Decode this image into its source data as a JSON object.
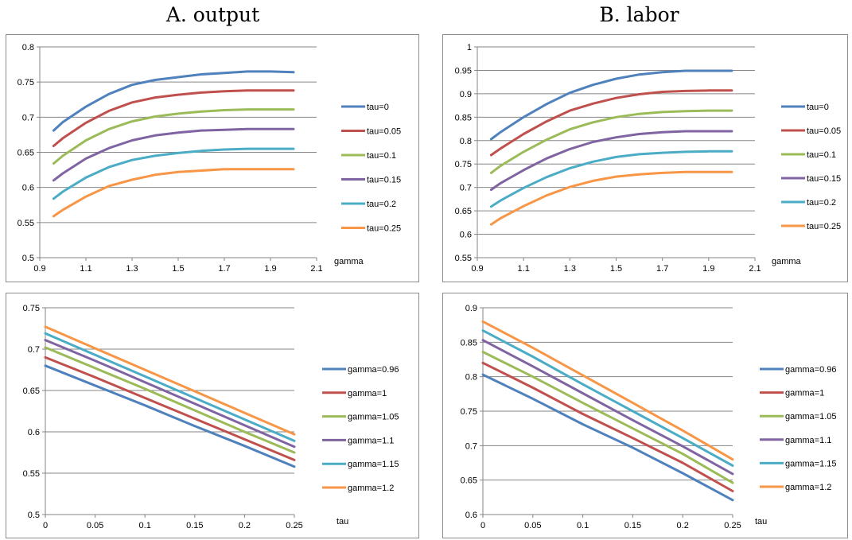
{
  "titles": {
    "left": "A. output",
    "right": "B. labor"
  },
  "chart_data": [
    {
      "id": "output_vs_gamma",
      "type": "line",
      "xlabel": "gamma",
      "ylabel": "",
      "xlim": [
        0.9,
        2.1
      ],
      "ylim": [
        0.5,
        0.8
      ],
      "xticks": [
        0.9,
        1.1,
        1.3,
        1.5,
        1.7,
        1.9,
        2.1
      ],
      "xtick_labels": [
        "0.9",
        "1.1",
        "1.3",
        "1.5",
        "1.7",
        "1.9",
        "2.1"
      ],
      "yticks": [
        0.5,
        0.55,
        0.6,
        0.65,
        0.7,
        0.75,
        0.8
      ],
      "ytick_labels": [
        "0.5",
        "0.55",
        "0.6",
        "0.65",
        "0.7",
        "0.75",
        "0.8"
      ],
      "grid": "horizontal",
      "legend": "right",
      "x": [
        0.96,
        1.0,
        1.1,
        1.2,
        1.3,
        1.4,
        1.5,
        1.6,
        1.7,
        1.8,
        1.9,
        2.0
      ],
      "series": [
        {
          "name": "tau=0",
          "color": "#4f81bd",
          "values": [
            0.681,
            0.693,
            0.715,
            0.733,
            0.746,
            0.753,
            0.757,
            0.761,
            0.763,
            0.765,
            0.765,
            0.764
          ]
        },
        {
          "name": "tau=0.05",
          "color": "#c0504d",
          "values": [
            0.659,
            0.67,
            0.692,
            0.709,
            0.721,
            0.728,
            0.732,
            0.735,
            0.737,
            0.738,
            0.738,
            0.738
          ]
        },
        {
          "name": "tau=0.1",
          "color": "#9bbb59",
          "values": [
            0.634,
            0.645,
            0.667,
            0.683,
            0.694,
            0.701,
            0.705,
            0.708,
            0.71,
            0.711,
            0.711,
            0.711
          ]
        },
        {
          "name": "tau=0.15",
          "color": "#8064a2",
          "values": [
            0.61,
            0.62,
            0.641,
            0.656,
            0.667,
            0.674,
            0.678,
            0.681,
            0.682,
            0.683,
            0.683,
            0.683
          ]
        },
        {
          "name": "tau=0.2",
          "color": "#4bacc6",
          "values": [
            0.584,
            0.594,
            0.614,
            0.629,
            0.639,
            0.645,
            0.649,
            0.652,
            0.654,
            0.655,
            0.655,
            0.655
          ]
        },
        {
          "name": "tau=0.25",
          "color": "#f79646",
          "values": [
            0.559,
            0.568,
            0.587,
            0.602,
            0.611,
            0.618,
            0.622,
            0.624,
            0.626,
            0.626,
            0.626,
            0.626
          ]
        }
      ]
    },
    {
      "id": "labor_vs_gamma",
      "type": "line",
      "xlabel": "gamma",
      "ylabel": "",
      "xlim": [
        0.9,
        2.1
      ],
      "ylim": [
        0.55,
        1.0
      ],
      "xticks": [
        0.9,
        1.1,
        1.3,
        1.5,
        1.7,
        1.9,
        2.1
      ],
      "xtick_labels": [
        "0.9",
        "1.1",
        "1.3",
        "1.5",
        "1.7",
        "1.9",
        "2.1"
      ],
      "yticks": [
        0.55,
        0.6,
        0.65,
        0.7,
        0.75,
        0.8,
        0.85,
        0.9,
        0.95,
        1.0
      ],
      "ytick_labels": [
        "0.55",
        "0.6",
        "0.65",
        "0.7",
        "0.75",
        "0.8",
        "0.85",
        "0.9",
        "0.95",
        "1"
      ],
      "grid": "horizontal",
      "legend": "right",
      "x": [
        0.96,
        1.0,
        1.1,
        1.2,
        1.3,
        1.4,
        1.5,
        1.6,
        1.7,
        1.8,
        1.9,
        2.0
      ],
      "series": [
        {
          "name": "tau=0",
          "color": "#4f81bd",
          "values": [
            0.803,
            0.818,
            0.85,
            0.878,
            0.902,
            0.919,
            0.932,
            0.941,
            0.946,
            0.949,
            0.949,
            0.949
          ]
        },
        {
          "name": "tau=0.05",
          "color": "#c0504d",
          "values": [
            0.769,
            0.783,
            0.814,
            0.841,
            0.864,
            0.879,
            0.891,
            0.899,
            0.904,
            0.906,
            0.907,
            0.907
          ]
        },
        {
          "name": "tau=0.1",
          "color": "#9bbb59",
          "values": [
            0.731,
            0.746,
            0.776,
            0.802,
            0.824,
            0.839,
            0.85,
            0.857,
            0.861,
            0.863,
            0.864,
            0.864
          ]
        },
        {
          "name": "tau=0.15",
          "color": "#8064a2",
          "values": [
            0.695,
            0.709,
            0.737,
            0.762,
            0.782,
            0.797,
            0.807,
            0.814,
            0.818,
            0.82,
            0.82,
            0.82
          ]
        },
        {
          "name": "tau=0.2",
          "color": "#4bacc6",
          "values": [
            0.659,
            0.672,
            0.699,
            0.722,
            0.741,
            0.755,
            0.765,
            0.771,
            0.774,
            0.776,
            0.777,
            0.777
          ]
        },
        {
          "name": "tau=0.25",
          "color": "#f79646",
          "values": [
            0.621,
            0.634,
            0.66,
            0.683,
            0.701,
            0.714,
            0.723,
            0.728,
            0.731,
            0.733,
            0.733,
            0.733
          ]
        }
      ]
    },
    {
      "id": "output_vs_tau",
      "type": "line",
      "xlabel": "tau",
      "ylabel": "",
      "xlim": [
        0,
        0.25
      ],
      "ylim": [
        0.5,
        0.75
      ],
      "xticks": [
        0,
        0.05,
        0.1,
        0.15,
        0.2,
        0.25
      ],
      "xtick_labels": [
        "0",
        "0.05",
        "0.1",
        "0.15",
        "0.2",
        "0.25"
      ],
      "yticks": [
        0.5,
        0.55,
        0.6,
        0.65,
        0.7,
        0.75
      ],
      "ytick_labels": [
        "0.5",
        "0.55",
        "0.6",
        "0.65",
        "0.7",
        "0.75"
      ],
      "grid": "horizontal",
      "legend": "right",
      "x": [
        0,
        0.05,
        0.1,
        0.15,
        0.2,
        0.25
      ],
      "series": [
        {
          "name": "gamma=0.96",
          "color": "#4f81bd",
          "values": [
            0.68,
            0.656,
            0.632,
            0.607,
            0.583,
            0.558
          ]
        },
        {
          "name": "gamma=1",
          "color": "#c0504d",
          "values": [
            0.69,
            0.666,
            0.641,
            0.616,
            0.591,
            0.566
          ]
        },
        {
          "name": "gamma=1.05",
          "color": "#9bbb59",
          "values": [
            0.702,
            0.677,
            0.652,
            0.626,
            0.6,
            0.575
          ]
        },
        {
          "name": "gamma=1.1",
          "color": "#8064a2",
          "values": [
            0.711,
            0.686,
            0.66,
            0.634,
            0.608,
            0.582
          ]
        },
        {
          "name": "gamma=1.15",
          "color": "#4bacc6",
          "values": [
            0.719,
            0.693,
            0.667,
            0.641,
            0.615,
            0.589
          ]
        },
        {
          "name": "gamma=1.2",
          "color": "#f79646",
          "values": [
            0.727,
            0.701,
            0.675,
            0.649,
            0.623,
            0.597
          ]
        }
      ]
    },
    {
      "id": "labor_vs_tau",
      "type": "line",
      "xlabel": "tau",
      "ylabel": "",
      "xlim": [
        0,
        0.25
      ],
      "ylim": [
        0.6,
        0.9
      ],
      "xticks": [
        0,
        0.05,
        0.1,
        0.15,
        0.2,
        0.25
      ],
      "xtick_labels": [
        "0",
        "0.05",
        "0.1",
        "0.15",
        "0.2",
        "0.25"
      ],
      "yticks": [
        0.6,
        0.65,
        0.7,
        0.75,
        0.8,
        0.85,
        0.9
      ],
      "ytick_labels": [
        "0.6",
        "0.65",
        "0.7",
        "0.75",
        "0.8",
        "0.85",
        "0.9"
      ],
      "grid": "horizontal",
      "legend": "right",
      "x": [
        0,
        0.05,
        0.1,
        0.15,
        0.2,
        0.25
      ],
      "series": [
        {
          "name": "gamma=0.96",
          "color": "#4f81bd",
          "values": [
            0.803,
            0.768,
            0.731,
            0.697,
            0.66,
            0.621
          ]
        },
        {
          "name": "gamma=1",
          "color": "#c0504d",
          "values": [
            0.82,
            0.784,
            0.746,
            0.711,
            0.675,
            0.634
          ]
        },
        {
          "name": "gamma=1.05",
          "color": "#9bbb59",
          "values": [
            0.836,
            0.8,
            0.762,
            0.725,
            0.688,
            0.646
          ]
        },
        {
          "name": "gamma=1.1",
          "color": "#8064a2",
          "values": [
            0.853,
            0.815,
            0.776,
            0.737,
            0.699,
            0.659
          ]
        },
        {
          "name": "gamma=1.15",
          "color": "#4bacc6",
          "values": [
            0.867,
            0.829,
            0.789,
            0.75,
            0.711,
            0.671
          ]
        },
        {
          "name": "gamma=1.2",
          "color": "#f79646",
          "values": [
            0.88,
            0.842,
            0.802,
            0.762,
            0.722,
            0.68
          ]
        }
      ]
    }
  ]
}
